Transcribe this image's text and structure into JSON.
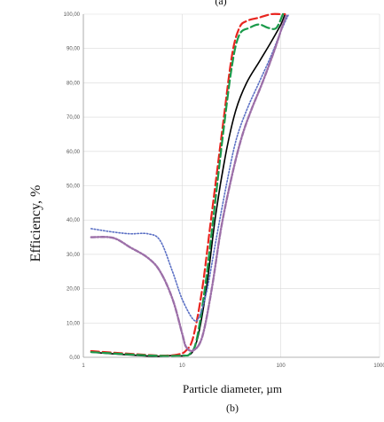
{
  "chart_data": {
    "type": "line",
    "panel_label_top": "(a)",
    "panel_label": "(b)",
    "xlabel": "Particle diameter, µm",
    "ylabel": "Efficiency, %",
    "x_scale": "log",
    "xlim": [
      1,
      1000
    ],
    "ylim": [
      0,
      100
    ],
    "grid": true,
    "y_ticks": [
      "0,00",
      "10,00",
      "20,00",
      "30,00",
      "40,00",
      "50,00",
      "60,00",
      "70,00",
      "80,00",
      "90,00",
      "100,00"
    ],
    "x_ticks": [
      "1",
      "10",
      "100",
      "1000"
    ],
    "series": [
      {
        "color": "#000000",
        "style": "solid",
        "x": [
          1.2,
          2,
          5,
          8,
          11,
          13,
          15,
          18,
          22,
          28,
          35,
          45,
          60,
          80,
          100,
          110
        ],
        "y": [
          1.5,
          1,
          0.3,
          0.5,
          0.5,
          2,
          8,
          22,
          42,
          60,
          72,
          80,
          86,
          92,
          97,
          100
        ]
      },
      {
        "color": "#e8251f",
        "style": "dashed",
        "x": [
          1.2,
          3,
          6,
          9,
          11,
          13,
          16,
          20,
          26,
          32,
          38,
          45,
          60,
          80,
          100,
          110
        ],
        "y": [
          1.8,
          1,
          0.5,
          0.8,
          2,
          6,
          20,
          42,
          68,
          88,
          96,
          98,
          99,
          100,
          100,
          100
        ]
      },
      {
        "color": "#1a9a4a",
        "style": "dashed",
        "x": [
          1.2,
          5,
          10,
          12,
          14,
          17,
          21,
          26,
          32,
          38,
          48,
          60,
          75,
          90,
          105
        ],
        "y": [
          1.5,
          0.5,
          0.5,
          1,
          5,
          20,
          42,
          65,
          85,
          94,
          96,
          97,
          96,
          96,
          100
        ]
      },
      {
        "color": "#5a6fc4",
        "style": "dotted",
        "x": [
          1.2,
          2,
          3,
          4.5,
          6,
          8,
          10,
          13,
          15,
          18,
          22,
          28,
          35,
          45,
          60,
          80,
          100,
          120
        ],
        "y": [
          37.5,
          36.5,
          36,
          36,
          34,
          25,
          17,
          11,
          12,
          20,
          34,
          50,
          63,
          72,
          80,
          88,
          95,
          100
        ]
      },
      {
        "color": "#9c6fa8",
        "style": "dash-dot",
        "x": [
          1.2,
          2,
          3,
          4.5,
          6,
          8,
          10,
          11,
          13,
          16,
          20,
          25,
          32,
          40,
          50,
          65,
          85,
          105,
          115
        ],
        "y": [
          35,
          34.8,
          32,
          29,
          25,
          17,
          7,
          3,
          2,
          6,
          20,
          38,
          53,
          64,
          72,
          80,
          89,
          97,
          100
        ]
      }
    ]
  }
}
